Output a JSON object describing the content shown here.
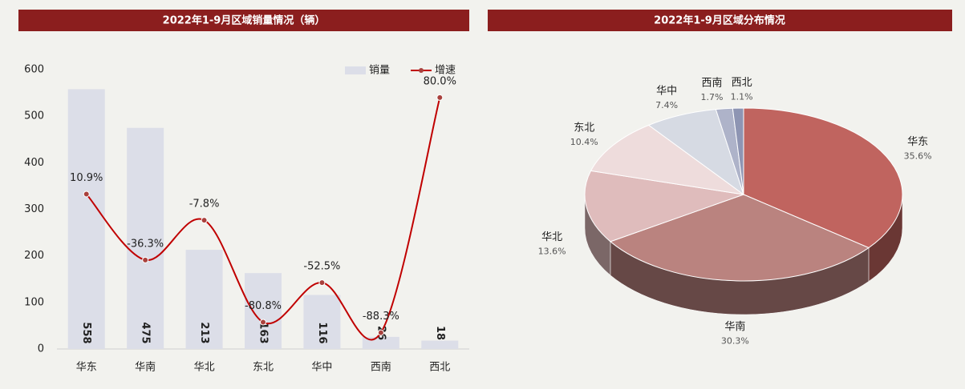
{
  "chart_data": [
    {
      "type": "bar",
      "title": "2022年1-9月区域销量情况（辆）",
      "categories": [
        "华东",
        "华南",
        "华北",
        "东北",
        "华中",
        "西南",
        "西北"
      ],
      "series": [
        {
          "name": "销量",
          "type": "bar",
          "color": "#dcdee8",
          "values": [
            558,
            475,
            213,
            163,
            116,
            26,
            18
          ]
        },
        {
          "name": "增速",
          "type": "line",
          "axis": "y2",
          "color": "#c00000",
          "values": [
            10.9,
            -36.3,
            -7.8,
            -80.8,
            -52.5,
            -88.3,
            80.0
          ],
          "value_labels": [
            "10.9%",
            "-36.3%",
            "-7.8%",
            "-80.8%",
            "-52.5%",
            "-88.3%",
            "80.0%"
          ]
        }
      ],
      "ylim": [
        0,
        600
      ],
      "yticks": [
        0,
        100,
        200,
        300,
        400,
        500,
        600
      ],
      "y2lim": [
        -100,
        100
      ],
      "grid": false,
      "legend": "top-right"
    },
    {
      "type": "pie",
      "title": "2022年1-9月区域分布情况",
      "categories": [
        "华东",
        "华南",
        "华北",
        "东北",
        "华中",
        "西南",
        "西北"
      ],
      "values": [
        35.6,
        30.3,
        13.6,
        10.4,
        7.4,
        1.7,
        1.1
      ],
      "value_labels": [
        "35.6%",
        "30.3%",
        "13.6%",
        "10.4%",
        "7.4%",
        "1.7%",
        "1.1%"
      ],
      "colors": [
        "#c0645f",
        "#ba837f",
        "#dfbcbc",
        "#eedcdc",
        "#d6dae3",
        "#aeb3c9",
        "#8e95b3"
      ]
    }
  ]
}
